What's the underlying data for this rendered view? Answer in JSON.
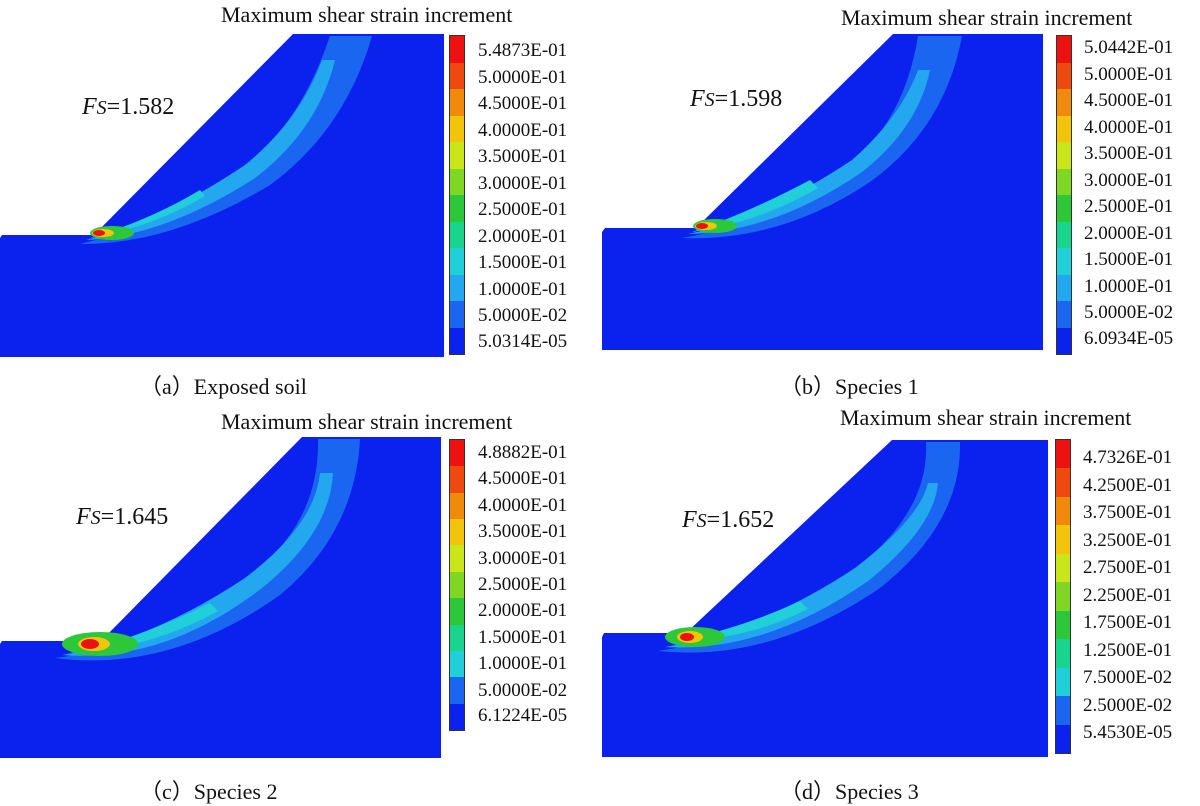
{
  "colors": {
    "background_blue": "#0b22ee",
    "scale": [
      "#ee1111",
      "#ee4a0f",
      "#f08a0c",
      "#f2c50a",
      "#c9e61a",
      "#7fd624",
      "#2cc83a",
      "#19d48c",
      "#20cfd8",
      "#23a8ef",
      "#1b66f0",
      "#0b22ee"
    ]
  },
  "panels": [
    {
      "id": "a",
      "colorbar_title": "Maximum shear strain increment",
      "fs_symbol": "F",
      "fs_sub": "S",
      "fs_value": "=1.582",
      "caption_letter": "（a）",
      "caption_text": "Exposed soil",
      "legend": [
        "5.4873E-01",
        "5.0000E-01",
        "4.5000E-01",
        "4.0000E-01",
        "3.5000E-01",
        "3.0000E-01",
        "2.5000E-01",
        "2.0000E-01",
        "1.5000E-01",
        "1.0000E-01",
        "5.0000E-02",
        "5.0314E-05"
      ]
    },
    {
      "id": "b",
      "colorbar_title": "Maximum shear strain increment",
      "fs_symbol": "F",
      "fs_sub": "S",
      "fs_value": "=1.598",
      "caption_letter": "（b）",
      "caption_text": "Species 1",
      "legend": [
        "5.0442E-01",
        "5.0000E-01",
        "4.5000E-01",
        "4.0000E-01",
        "3.5000E-01",
        "3.0000E-01",
        "2.5000E-01",
        "2.0000E-01",
        "1.5000E-01",
        "1.0000E-01",
        "5.0000E-02",
        "6.0934E-05"
      ]
    },
    {
      "id": "c",
      "colorbar_title": "Maximum shear strain increment",
      "fs_symbol": "F",
      "fs_sub": "S",
      "fs_value": "=1.645",
      "caption_letter": "（c）",
      "caption_text": "Species 2",
      "legend": [
        "4.8882E-01",
        "4.5000E-01",
        "4.0000E-01",
        "3.5000E-01",
        "3.0000E-01",
        "2.5000E-01",
        "2.0000E-01",
        "1.5000E-01",
        "1.0000E-01",
        "5.0000E-02",
        "6.1224E-05"
      ]
    },
    {
      "id": "d",
      "colorbar_title": "Maximum shear strain increment",
      "fs_symbol": "F",
      "fs_sub": "S",
      "fs_value": "=1.652",
      "caption_letter": "（d）",
      "caption_text": "Species 3",
      "legend": [
        "4.7326E-01",
        "4.2500E-01",
        "3.7500E-01",
        "3.2500E-01",
        "2.7500E-01",
        "2.2500E-01",
        "1.7500E-01",
        "1.2500E-01",
        "7.5000E-02",
        "2.5000E-02",
        "5.4530E-05"
      ]
    }
  ]
}
